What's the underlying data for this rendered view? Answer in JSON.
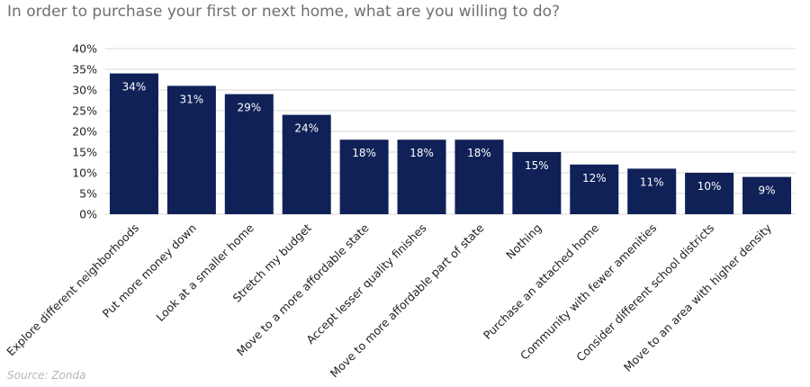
{
  "chart_data": {
    "type": "bar",
    "title": "In order to purchase your first or next home, what are you willing to do?",
    "categories": [
      "Explore different neighborhoods",
      "Put more money down",
      "Look at a smaller home",
      "Stretch my budget",
      "Move to a more affordable state",
      "Accept lesser quality finishes",
      "Move to more affordable part of state",
      "Nothing",
      "Purchase an attached home",
      "Community with fewer amenities",
      "Consider different school districts",
      "Move to an area with higher density"
    ],
    "values": [
      34,
      31,
      29,
      24,
      18,
      18,
      18,
      15,
      12,
      11,
      10,
      9
    ],
    "value_labels": [
      "34%",
      "31%",
      "29%",
      "24%",
      "18%",
      "18%",
      "18%",
      "15%",
      "12%",
      "11%",
      "10%",
      "9%"
    ],
    "yticks": [
      0,
      5,
      10,
      15,
      20,
      25,
      30,
      35,
      40
    ],
    "ytick_labels": [
      "0%",
      "5%",
      "10%",
      "15%",
      "20%",
      "25%",
      "30%",
      "35%",
      "40%"
    ],
    "ylim": [
      0,
      40
    ],
    "xlabel": "",
    "ylabel": "",
    "grid": true,
    "bar_color": "#0f2157",
    "source": "Source: Zonda"
  }
}
